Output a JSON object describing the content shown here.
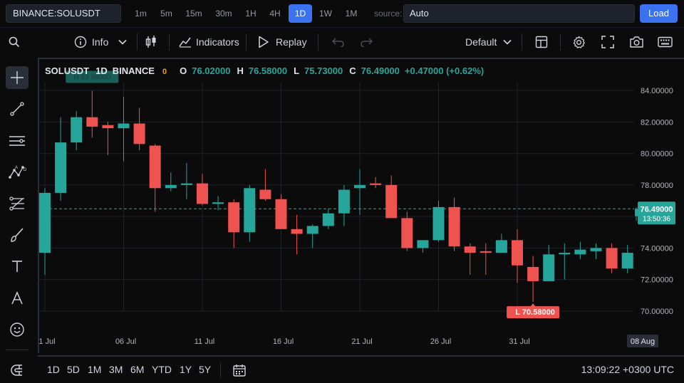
{
  "topbar": {
    "symbol": "BINANCE:SOLUSDT",
    "timeframes": [
      "1m",
      "5m",
      "15m",
      "30m",
      "1H",
      "4H",
      "1D",
      "1W",
      "1M"
    ],
    "active_timeframe": "1D",
    "source_label": "source:",
    "source_value": "Auto",
    "load_label": "Load"
  },
  "toolbar": {
    "info_label": "Info",
    "indicators_label": "Indicators",
    "replay_label": "Replay",
    "layout_label": "Default"
  },
  "legend": {
    "symbol": "SOLUSDT",
    "interval": "1D",
    "exchange": "BINANCE",
    "status": "0",
    "o_label": "O",
    "o_value": "76.02000",
    "h_label": "H",
    "h_value": "76.58000",
    "l_label": "L",
    "l_value": "75.73000",
    "c_label": "C",
    "c_value": "76.49000",
    "change": "+0.47000 (+0.62%)"
  },
  "bottombar": {
    "ranges": [
      "1D",
      "5D",
      "1M",
      "3M",
      "6M",
      "YTD",
      "1Y",
      "5Y"
    ],
    "clock": "13:09:22 +0300 UTC"
  },
  "colors": {
    "up": "#26a69a",
    "down": "#ef5350",
    "accent": "#3b72f0"
  },
  "chart_data": {
    "type": "candlestick",
    "title": "SOLUSDT 1D BINANCE",
    "y_ticks": [
      "84.00000",
      "82.00000",
      "80.00000",
      "78.00000",
      "76.00000",
      "74.00000",
      "72.00000",
      "70.00000"
    ],
    "ylim": [
      69.6,
      84.9
    ],
    "x_ticks": [
      "1 Jul",
      "06 Jul",
      "11 Jul",
      "16 Jul",
      "21 Jul",
      "26 Jul",
      "31 Jul"
    ],
    "last_price": "76.49000",
    "countdown": "13:50:36",
    "last_date_label": "08 Aug",
    "high_marker": "H 83.98000",
    "low_marker": "L 70.58000",
    "ohlc": [
      {
        "d": "1 Jul",
        "o": 73.7,
        "h": 77.8,
        "l": 72.3,
        "c": 77.5
      },
      {
        "d": "2 Jul",
        "o": 77.5,
        "h": 82.3,
        "l": 77.0,
        "c": 80.7
      },
      {
        "d": "3 Jul",
        "o": 80.7,
        "h": 82.7,
        "l": 80.2,
        "c": 82.3
      },
      {
        "d": "4 Jul",
        "o": 82.3,
        "h": 83.98,
        "l": 81.0,
        "c": 81.7
      },
      {
        "d": "5 Jul",
        "o": 81.8,
        "h": 82.0,
        "l": 79.9,
        "c": 81.6
      },
      {
        "d": "06 Jul",
        "o": 81.6,
        "h": 83.6,
        "l": 79.5,
        "c": 81.9
      },
      {
        "d": "7 Jul",
        "o": 81.9,
        "h": 82.9,
        "l": 80.2,
        "c": 80.6
      },
      {
        "d": "8 Jul",
        "o": 80.5,
        "h": 80.6,
        "l": 76.3,
        "c": 77.8
      },
      {
        "d": "9 Jul",
        "o": 77.8,
        "h": 78.8,
        "l": 77.6,
        "c": 78.0
      },
      {
        "d": "10 Jul",
        "o": 78.0,
        "h": 79.4,
        "l": 77.1,
        "c": 78.1
      },
      {
        "d": "11 Jul",
        "o": 78.1,
        "h": 78.7,
        "l": 76.7,
        "c": 76.8
      },
      {
        "d": "12 Jul",
        "o": 76.8,
        "h": 77.3,
        "l": 76.4,
        "c": 76.9
      },
      {
        "d": "13 Jul",
        "o": 76.9,
        "h": 77.1,
        "l": 74.0,
        "c": 75.0
      },
      {
        "d": "14 Jul",
        "o": 75.0,
        "h": 78.0,
        "l": 74.4,
        "c": 77.8
      },
      {
        "d": "15 Jul",
        "o": 77.7,
        "h": 79.0,
        "l": 77.0,
        "c": 77.1
      },
      {
        "d": "16 Jul",
        "o": 77.1,
        "h": 77.4,
        "l": 75.2,
        "c": 75.2
      },
      {
        "d": "17 Jul",
        "o": 75.2,
        "h": 76.1,
        "l": 73.6,
        "c": 74.9
      },
      {
        "d": "18 Jul",
        "o": 74.9,
        "h": 75.5,
        "l": 74.0,
        "c": 75.4
      },
      {
        "d": "19 Jul",
        "o": 75.4,
        "h": 76.5,
        "l": 75.2,
        "c": 76.2
      },
      {
        "d": "20 Jul",
        "o": 76.2,
        "h": 78.0,
        "l": 75.4,
        "c": 77.7
      },
      {
        "d": "21 Jul",
        "o": 77.8,
        "h": 79.0,
        "l": 76.1,
        "c": 78.0
      },
      {
        "d": "22 Jul",
        "o": 78.1,
        "h": 78.5,
        "l": 77.8,
        "c": 78.0
      },
      {
        "d": "23 Jul",
        "o": 78.0,
        "h": 78.6,
        "l": 75.9,
        "c": 75.9
      },
      {
        "d": "24 Jul",
        "o": 75.9,
        "h": 76.3,
        "l": 73.8,
        "c": 74.0
      },
      {
        "d": "25 Jul",
        "o": 74.0,
        "h": 74.5,
        "l": 73.7,
        "c": 74.5
      },
      {
        "d": "26 Jul",
        "o": 74.5,
        "h": 77.0,
        "l": 74.4,
        "c": 76.6
      },
      {
        "d": "27 Jul",
        "o": 76.6,
        "h": 77.2,
        "l": 73.8,
        "c": 74.1
      },
      {
        "d": "28 Jul",
        "o": 74.1,
        "h": 74.3,
        "l": 72.3,
        "c": 73.7
      },
      {
        "d": "29 Jul",
        "o": 73.8,
        "h": 74.3,
        "l": 72.3,
        "c": 73.7
      },
      {
        "d": "30 Jul",
        "o": 73.7,
        "h": 74.9,
        "l": 73.7,
        "c": 74.5
      },
      {
        "d": "31 Jul",
        "o": 74.5,
        "h": 75.2,
        "l": 71.8,
        "c": 72.9
      },
      {
        "d": "1 Aug",
        "o": 72.8,
        "h": 73.5,
        "l": 70.58,
        "c": 71.9
      },
      {
        "d": "2 Aug",
        "o": 71.9,
        "h": 74.2,
        "l": 71.9,
        "c": 73.6
      },
      {
        "d": "3 Aug",
        "o": 73.6,
        "h": 74.3,
        "l": 72.0,
        "c": 73.7
      },
      {
        "d": "4 Aug",
        "o": 73.6,
        "h": 74.4,
        "l": 73.3,
        "c": 73.9
      },
      {
        "d": "5 Aug",
        "o": 73.8,
        "h": 74.3,
        "l": 73.3,
        "c": 74.0
      },
      {
        "d": "6 Aug",
        "o": 74.0,
        "h": 74.3,
        "l": 72.4,
        "c": 72.7
      },
      {
        "d": "7 Aug",
        "o": 72.7,
        "h": 74.2,
        "l": 72.4,
        "c": 73.7
      },
      {
        "d": "08 Aug",
        "o": 76.02,
        "h": 76.58,
        "l": 75.73,
        "c": 76.49
      }
    ]
  }
}
